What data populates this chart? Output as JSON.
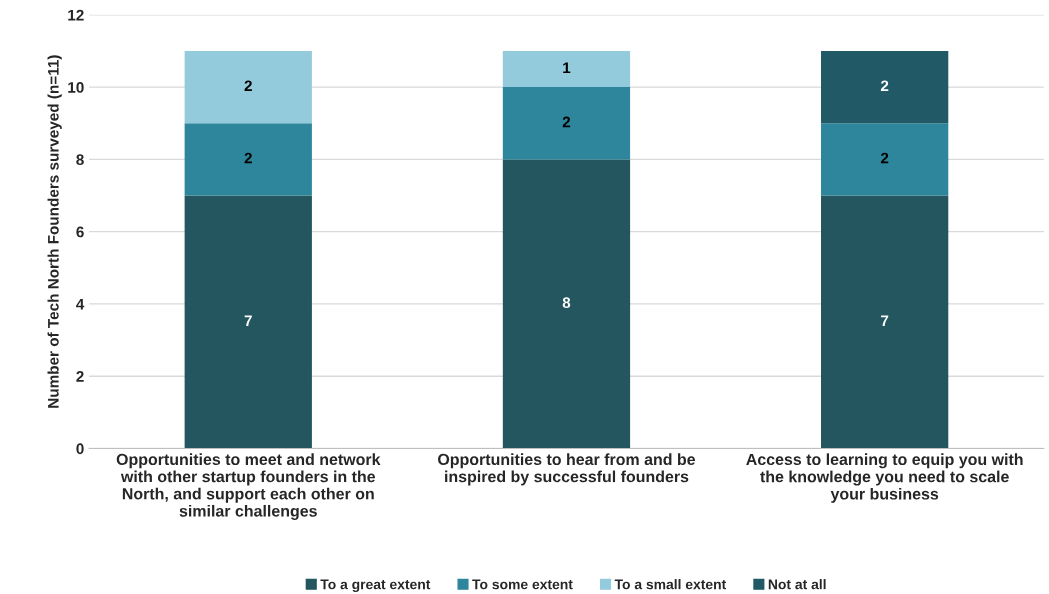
{
  "chart_data": {
    "type": "bar",
    "stacked": true,
    "categories": [
      "Opportunities to meet and network\nwith other startup founders in the\nNorth, and support each other on\nsimilar challenges",
      "Opportunities to hear from and be\ninspired by successful founders",
      "Access to learning to equip you with\nthe knowledge you need to scale\nyour business"
    ],
    "series": [
      {
        "name": "To a great extent",
        "color": "#23565f",
        "values": [
          7,
          8,
          7
        ]
      },
      {
        "name": "To some extent",
        "color": "#2e869c",
        "values": [
          2,
          2,
          2
        ]
      },
      {
        "name": "To a small extent",
        "color": "#93cbdc",
        "values": [
          2,
          1,
          null
        ]
      },
      {
        "name": "Not at all",
        "color": "#215a66",
        "values": [
          null,
          null,
          2
        ]
      }
    ],
    "ylabel": "Number of Tech North Founders surveyed (n=11)",
    "ylim": [
      0,
      12
    ],
    "yticks": [
      0,
      2,
      4,
      6,
      8,
      10,
      12
    ],
    "grid": "y",
    "legend": "bottom",
    "data_labels": true
  }
}
